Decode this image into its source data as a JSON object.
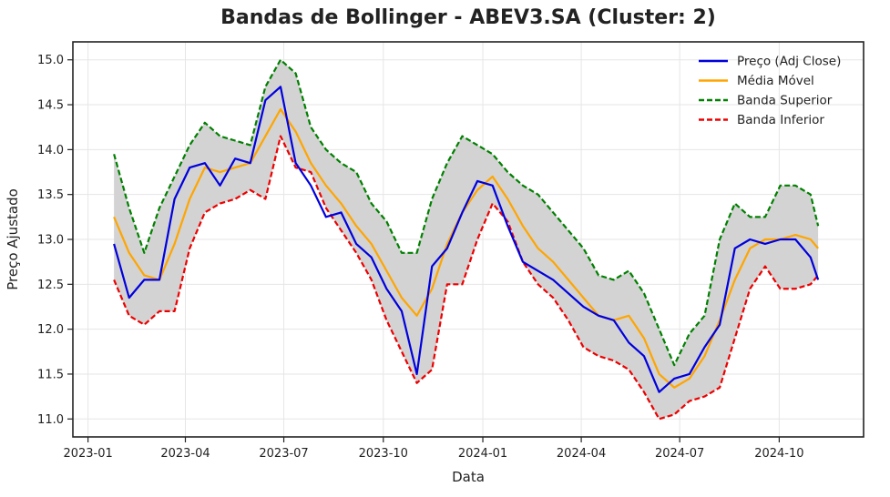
{
  "chart_data": {
    "type": "line",
    "title": "Bandas de Bollinger - ABEV3.SA (Cluster: 2)",
    "xlabel": "Data",
    "ylabel": "Preço Ajustado",
    "x_ticks": [
      "2023-01",
      "2023-04",
      "2023-07",
      "2023-10",
      "2024-01",
      "2024-04",
      "2024-07",
      "2024-10"
    ],
    "y_ticks": [
      "11.0",
      "11.5",
      "12.0",
      "12.5",
      "13.0",
      "13.5",
      "14.0",
      "14.5",
      "15.0"
    ],
    "xlim": [
      "2022-12-18",
      "2024-12-18"
    ],
    "ylim": [
      10.8,
      15.2
    ],
    "grid": true,
    "legend_position": "top-right",
    "band_fill": "#d3d3d3",
    "dates": [
      "2023-01-25",
      "2023-02-08",
      "2023-02-22",
      "2023-03-08",
      "2023-03-22",
      "2023-04-05",
      "2023-04-19",
      "2023-05-03",
      "2023-05-17",
      "2023-05-31",
      "2023-06-14",
      "2023-06-28",
      "2023-07-12",
      "2023-07-26",
      "2023-08-09",
      "2023-08-23",
      "2023-09-06",
      "2023-09-20",
      "2023-10-04",
      "2023-10-18",
      "2023-11-01",
      "2023-11-15",
      "2023-11-29",
      "2023-12-13",
      "2023-12-27",
      "2024-01-10",
      "2024-01-24",
      "2024-02-07",
      "2024-02-21",
      "2024-03-06",
      "2024-03-20",
      "2024-04-03",
      "2024-04-17",
      "2024-05-01",
      "2024-05-15",
      "2024-05-29",
      "2024-06-12",
      "2024-06-26",
      "2024-07-10",
      "2024-07-24",
      "2024-08-07",
      "2024-08-21",
      "2024-09-04",
      "2024-09-18",
      "2024-10-02",
      "2024-10-16",
      "2024-10-30",
      "2024-11-06"
    ],
    "series": [
      {
        "name": "Preço (Adj Close)",
        "color": "#0000dd",
        "style": "solid",
        "values": [
          12.95,
          12.35,
          12.55,
          12.55,
          13.45,
          13.8,
          13.85,
          13.6,
          13.9,
          13.85,
          14.55,
          14.7,
          13.85,
          13.6,
          13.25,
          13.3,
          12.95,
          12.8,
          12.45,
          12.2,
          11.5,
          12.7,
          12.9,
          13.3,
          13.65,
          13.6,
          13.15,
          12.75,
          12.65,
          12.55,
          12.4,
          12.25,
          12.15,
          12.1,
          11.85,
          11.7,
          11.3,
          11.45,
          11.5,
          11.8,
          12.05,
          12.9,
          13.0,
          12.95,
          13.0,
          13.0,
          12.8,
          12.55
        ]
      },
      {
        "name": "Média Móvel",
        "color": "#ffa500",
        "style": "solid",
        "values": [
          13.25,
          12.85,
          12.6,
          12.55,
          12.95,
          13.45,
          13.8,
          13.75,
          13.8,
          13.85,
          14.15,
          14.45,
          14.2,
          13.85,
          13.6,
          13.4,
          13.15,
          12.95,
          12.65,
          12.35,
          12.15,
          12.45,
          12.95,
          13.3,
          13.55,
          13.7,
          13.45,
          13.15,
          12.9,
          12.75,
          12.55,
          12.35,
          12.15,
          12.1,
          12.15,
          11.9,
          11.5,
          11.35,
          11.45,
          11.7,
          12.1,
          12.55,
          12.9,
          13.0,
          13.0,
          13.05,
          13.0,
          12.9
        ]
      },
      {
        "name": "Banda Superior",
        "color": "#008000",
        "style": "dashed",
        "values": [
          13.95,
          13.35,
          12.85,
          13.35,
          13.7,
          14.05,
          14.3,
          14.15,
          14.1,
          14.05,
          14.7,
          15.0,
          14.85,
          14.25,
          14.0,
          13.85,
          13.75,
          13.4,
          13.2,
          12.85,
          12.85,
          13.45,
          13.85,
          14.15,
          14.05,
          13.95,
          13.75,
          13.6,
          13.5,
          13.3,
          13.1,
          12.9,
          12.6,
          12.55,
          12.65,
          12.4,
          12.0,
          11.6,
          11.95,
          12.15,
          13.0,
          13.4,
          13.25,
          13.25,
          13.6,
          13.6,
          13.5,
          13.15
        ]
      },
      {
        "name": "Banda Inferior",
        "color": "#ee0000",
        "style": "dashed",
        "values": [
          12.55,
          12.15,
          12.05,
          12.2,
          12.2,
          12.9,
          13.3,
          13.4,
          13.45,
          13.55,
          13.45,
          14.15,
          13.8,
          13.75,
          13.35,
          13.1,
          12.85,
          12.55,
          12.1,
          11.75,
          11.4,
          11.55,
          12.5,
          12.5,
          13.0,
          13.4,
          13.2,
          12.75,
          12.5,
          12.35,
          12.1,
          11.8,
          11.7,
          11.65,
          11.55,
          11.3,
          11.0,
          11.05,
          11.2,
          11.25,
          11.35,
          11.9,
          12.45,
          12.7,
          12.45,
          12.45,
          12.5,
          12.6
        ]
      }
    ]
  }
}
